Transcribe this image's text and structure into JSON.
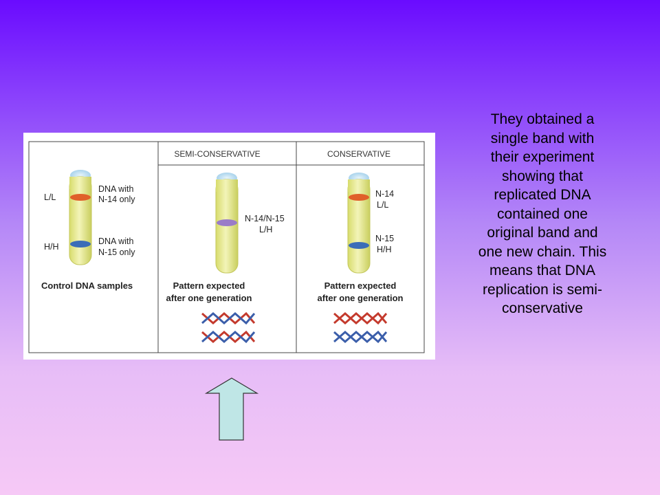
{
  "figure": {
    "headers": {
      "semi": "SEMI-CONSERVATIVE",
      "conservative": "CONSERVATIVE"
    },
    "control": {
      "light_tag": "L/L",
      "light_label_1": "DNA with",
      "light_label_2": "N-14 only",
      "heavy_tag": "H/H",
      "heavy_label_1": "DNA with",
      "heavy_label_2": "N-15 only",
      "caption": "Control DNA samples"
    },
    "semi": {
      "band_label_1": "N-14/N-15",
      "band_label_2": "L/H",
      "caption_1": "Pattern expected",
      "caption_2": "after one generation"
    },
    "conservative": {
      "top_label_1": "N-14",
      "top_label_2": "L/L",
      "bottom_label_1": "N-15",
      "bottom_label_2": "H/H",
      "caption_1": "Pattern expected",
      "caption_2": "after one generation"
    }
  },
  "side_text": "They obtained a\nsingle band with\ntheir experiment\nshowing that\nreplicated DNA\ncontained one\noriginal band and\none new chain.  This\nmeans that DNA\nreplication is semi-\nconservative",
  "colors": {
    "light_band": "#e0602a",
    "heavy_band": "#3b6db8",
    "hybrid_band": "#9a7cc8",
    "tube_fill": "#e8ea9a",
    "arrow_fill": "#bfe6e6"
  }
}
